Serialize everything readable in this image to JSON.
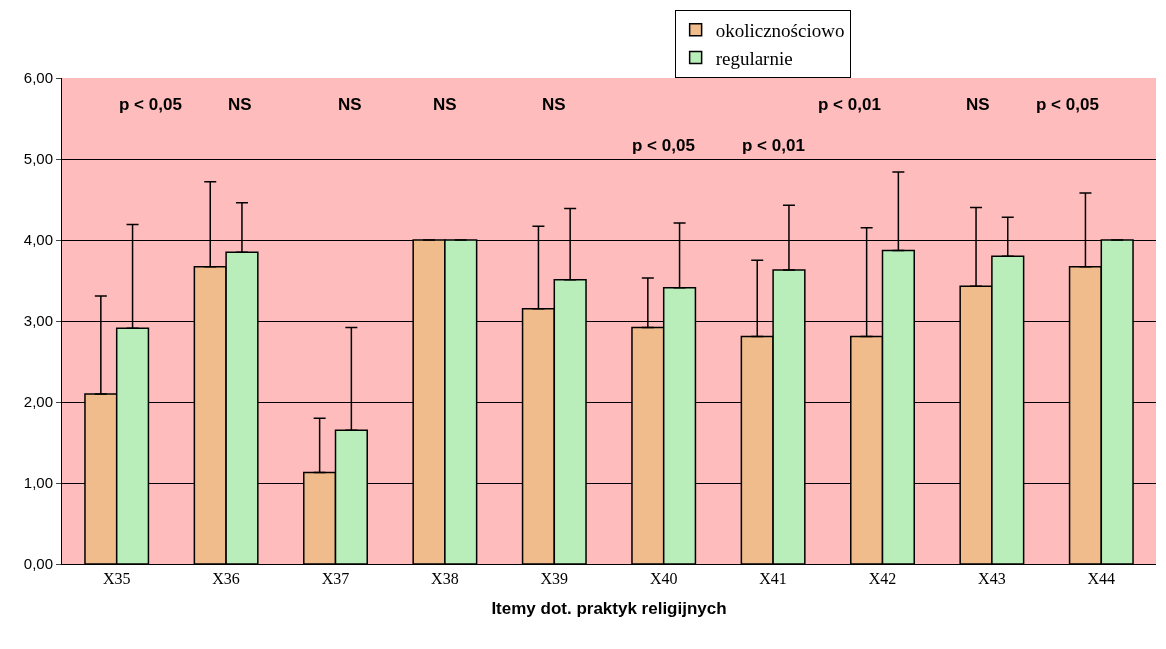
{
  "chart_data": {
    "type": "bar",
    "xlabel": "Itemy dot. praktyk religijnych",
    "categories": [
      "X35",
      "X36",
      "X37",
      "X38",
      "X39",
      "X40",
      "X41",
      "X42",
      "X43",
      "X44"
    ],
    "series": [
      {
        "name": "okolicznościowo",
        "color": "#f0bc8c",
        "values": [
          2.1,
          3.67,
          1.13,
          4.0,
          3.15,
          2.92,
          2.81,
          2.81,
          3.43,
          3.67
        ],
        "errors": [
          [
            2.1,
            3.31
          ],
          [
            3.67,
            4.72
          ],
          [
            1.13,
            1.8
          ],
          null,
          [
            3.15,
            4.17
          ],
          [
            2.92,
            3.53
          ],
          [
            2.81,
            3.75
          ],
          [
            2.81,
            4.15
          ],
          [
            3.43,
            4.4
          ],
          [
            3.67,
            4.58
          ]
        ]
      },
      {
        "name": "regularnie",
        "color": "#b9eebb",
        "values": [
          2.91,
          3.85,
          1.65,
          4.0,
          3.51,
          3.41,
          3.63,
          3.87,
          3.8,
          4.0
        ],
        "errors": [
          [
            2.91,
            4.19
          ],
          [
            3.85,
            4.46
          ],
          [
            1.65,
            2.92
          ],
          null,
          [
            3.51,
            4.39
          ],
          [
            3.41,
            4.21
          ],
          [
            3.63,
            4.43
          ],
          [
            3.87,
            4.84
          ],
          [
            3.8,
            4.28
          ],
          null
        ]
      }
    ],
    "ylim": [
      0,
      6
    ],
    "yticks": [
      {
        "value": 0,
        "label": "0,00"
      },
      {
        "value": 1,
        "label": "1,00"
      },
      {
        "value": 2,
        "label": "2,00"
      },
      {
        "value": 3,
        "label": "3,00"
      },
      {
        "value": 4,
        "label": "4,00"
      },
      {
        "value": 5,
        "label": "5,00"
      },
      {
        "value": 6,
        "label": "6,00"
      }
    ],
    "grid": "y",
    "legend": "top",
    "annotations": [
      "p < 0,05",
      "NS",
      "NS",
      "NS",
      "NS",
      "p < 0,05",
      "p < 0,01",
      "p < 0,01",
      "NS",
      "p < 0,05"
    ]
  }
}
